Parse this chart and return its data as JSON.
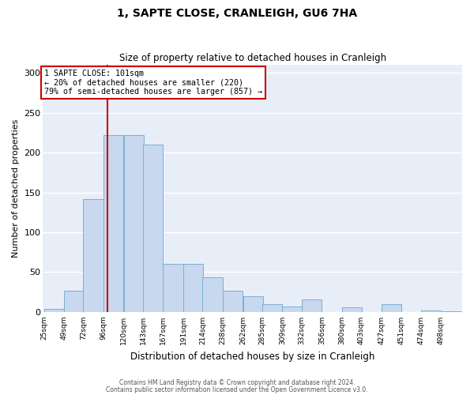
{
  "title": "1, SAPTE CLOSE, CRANLEIGH, GU6 7HA",
  "subtitle": "Size of property relative to detached houses in Cranleigh",
  "xlabel": "Distribution of detached houses by size in Cranleigh",
  "ylabel": "Number of detached properties",
  "bar_color": "#c8d8ee",
  "bar_edge_color": "#7aafd4",
  "background_color": "#e8eef8",
  "grid_color": "#ffffff",
  "red_line_x": 101,
  "annotation_title": "1 SAPTE CLOSE: 101sqm",
  "annotation_line1": "← 20% of detached houses are smaller (220)",
  "annotation_line2": "79% of semi-detached houses are larger (857) →",
  "annotation_box_color": "#cc0000",
  "bins": [
    25,
    49,
    72,
    96,
    120,
    143,
    167,
    191,
    214,
    238,
    262,
    285,
    309,
    332,
    356,
    380,
    403,
    427,
    451,
    474,
    498
  ],
  "counts": [
    4,
    27,
    142,
    222,
    222,
    210,
    60,
    60,
    44,
    27,
    20,
    10,
    7,
    16,
    0,
    6,
    0,
    10,
    0,
    2,
    1
  ],
  "ylim": [
    0,
    310
  ],
  "yticks": [
    0,
    50,
    100,
    150,
    200,
    250,
    300
  ],
  "footnote1": "Contains HM Land Registry data © Crown copyright and database right 2024.",
  "footnote2": "Contains public sector information licensed under the Open Government Licence v3.0."
}
